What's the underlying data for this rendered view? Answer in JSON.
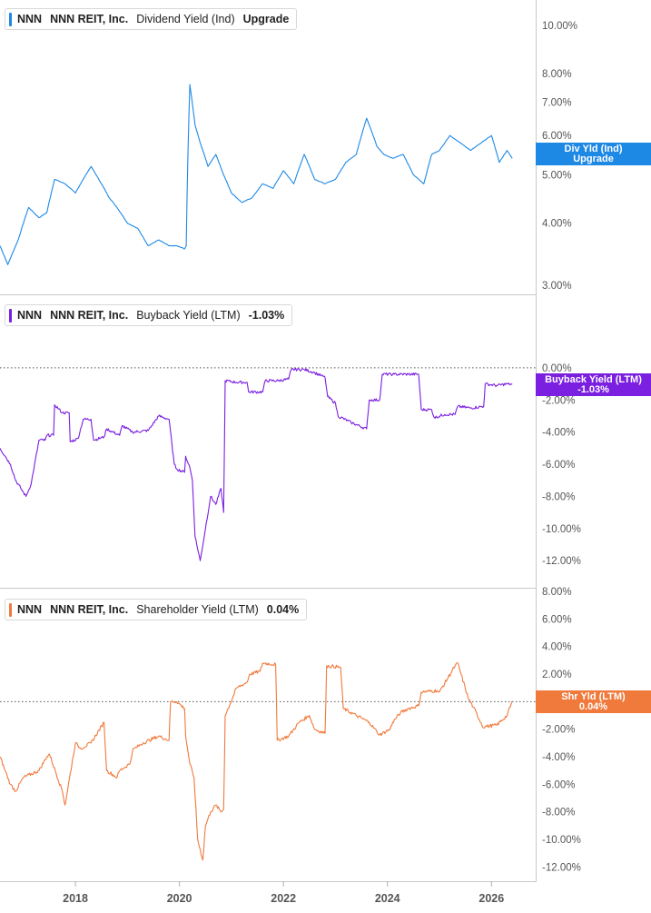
{
  "chart_data": [
    {
      "type": "line",
      "ticker": "NNN",
      "company": "NNN REIT, Inc.",
      "metric": "Dividend Yield (Ind)",
      "legend_value": "Upgrade",
      "color": "#1e88e5",
      "y_scale": "log",
      "ylim": [
        2.9,
        10.6
      ],
      "y_ticks": [
        "10.00%",
        "8.00%",
        "7.00%",
        "6.00%",
        "5.00%",
        "4.00%",
        "3.00%"
      ],
      "y_tick_values": [
        10,
        8,
        7,
        6,
        5,
        4,
        3
      ],
      "zero_line": false,
      "end_tag": [
        "Div Yld (Ind)",
        "Upgrade"
      ],
      "series": {
        "x": [
          2016.55,
          2016.7,
          2016.9,
          2017.1,
          2017.3,
          2017.45,
          2017.6,
          2017.8,
          2018.0,
          2018.15,
          2018.3,
          2018.5,
          2018.65,
          2018.8,
          2019.0,
          2019.2,
          2019.4,
          2019.6,
          2019.8,
          2019.95,
          2020.1,
          2020.13,
          2020.2,
          2020.3,
          2020.4,
          2020.55,
          2020.7,
          2020.85,
          2021.0,
          2021.2,
          2021.4,
          2021.6,
          2021.8,
          2022.0,
          2022.2,
          2022.4,
          2022.6,
          2022.8,
          2023.0,
          2023.2,
          2023.4,
          2023.6,
          2023.8,
          2023.93,
          2024.1,
          2024.3,
          2024.5,
          2024.7,
          2024.85,
          2025.0,
          2025.2,
          2025.4,
          2025.6,
          2025.8,
          2026.0,
          2026.15,
          2026.3,
          2026.4
        ],
        "y": [
          3.6,
          3.3,
          3.7,
          4.3,
          4.1,
          4.2,
          4.9,
          4.8,
          4.6,
          4.9,
          5.2,
          4.8,
          4.5,
          4.3,
          4.0,
          3.9,
          3.6,
          3.7,
          3.6,
          3.6,
          3.55,
          3.6,
          7.6,
          6.3,
          5.8,
          5.2,
          5.5,
          5.0,
          4.6,
          4.4,
          4.5,
          4.8,
          4.7,
          5.1,
          4.8,
          5.5,
          4.9,
          4.8,
          4.9,
          5.3,
          5.5,
          6.5,
          5.7,
          5.5,
          5.4,
          5.5,
          5.0,
          4.8,
          5.5,
          5.6,
          6.0,
          5.8,
          5.6,
          5.8,
          6.0,
          5.3,
          5.6,
          5.4
        ]
      }
    },
    {
      "type": "line",
      "ticker": "NNN",
      "company": "NNN REIT, Inc.",
      "metric": "Buyback Yield (LTM)",
      "legend_value": "-1.03%",
      "color": "#7b1fe0",
      "ylim": [
        -12.5,
        2.2
      ],
      "y_ticks": [
        "0.00%",
        "-2.00%",
        "-4.00%",
        "-6.00%",
        "-8.00%",
        "-10.00%",
        "-12.00%"
      ],
      "y_tick_values": [
        0,
        -2,
        -4,
        -6,
        -8,
        -10,
        -12
      ],
      "zero_line": true,
      "end_tag": [
        "Buyback Yield (LTM)",
        "-1.03%"
      ],
      "series": {
        "x": [
          2016.55,
          2016.65,
          2016.75,
          2016.85,
          2016.95,
          2017.05,
          2017.15,
          2017.3,
          2017.42,
          2017.45,
          2017.58,
          2017.6,
          2017.75,
          2017.88,
          2017.9,
          2018.05,
          2018.15,
          2018.3,
          2018.35,
          2018.55,
          2018.6,
          2018.85,
          2018.9,
          2019.1,
          2019.4,
          2019.6,
          2019.8,
          2019.9,
          2019.95,
          2020.1,
          2020.12,
          2020.2,
          2020.25,
          2020.3,
          2020.4,
          2020.5,
          2020.6,
          2020.7,
          2020.8,
          2020.85,
          2020.88,
          2021.1,
          2021.3,
          2021.33,
          2021.6,
          2021.65,
          2021.9,
          2022.1,
          2022.15,
          2022.4,
          2022.6,
          2022.8,
          2022.85,
          2023.0,
          2023.05,
          2023.3,
          2023.6,
          2023.65,
          2023.85,
          2023.9,
          2024.1,
          2024.13,
          2024.4,
          2024.6,
          2024.65,
          2024.85,
          2024.9,
          2025.1,
          2025.3,
          2025.35,
          2025.6,
          2025.85,
          2025.88,
          2026.1,
          2026.3,
          2026.4
        ],
        "y": [
          -5.0,
          -5.5,
          -6.0,
          -7.0,
          -7.5,
          -8.0,
          -7.2,
          -4.5,
          -4.5,
          -4.2,
          -4.2,
          -2.3,
          -2.8,
          -2.8,
          -4.6,
          -4.4,
          -3.2,
          -3.2,
          -4.5,
          -4.3,
          -3.8,
          -4.2,
          -3.6,
          -4.0,
          -3.9,
          -3.0,
          -3.2,
          -6.0,
          -6.3,
          -6.5,
          -5.5,
          -6.2,
          -7.0,
          -10.5,
          -12.0,
          -10.0,
          -8.0,
          -8.5,
          -7.5,
          -9.0,
          -0.8,
          -0.9,
          -0.9,
          -1.5,
          -1.5,
          -0.8,
          -0.8,
          -0.7,
          -0.1,
          -0.1,
          -0.3,
          -0.6,
          -1.8,
          -2.2,
          -3.0,
          -3.4,
          -3.8,
          -2.0,
          -2.0,
          -0.4,
          -0.4,
          -0.4,
          -0.4,
          -0.4,
          -2.6,
          -2.6,
          -3.1,
          -2.9,
          -2.9,
          -2.4,
          -2.5,
          -2.4,
          -1.0,
          -1.1,
          -1.0,
          -1.03
        ]
      }
    },
    {
      "type": "line",
      "ticker": "NNN",
      "company": "NNN REIT, Inc.",
      "metric": "Shareholder Yield (LTM)",
      "legend_value": "0.04%",
      "color": "#f07a3c",
      "ylim": [
        -12.5,
        8.2
      ],
      "y_ticks": [
        "8.00%",
        "6.00%",
        "4.00%",
        "2.00%",
        "0.00%",
        "-2.00%",
        "-4.00%",
        "-6.00%",
        "-8.00%",
        "-10.00%",
        "-12.00%"
      ],
      "y_tick_values": [
        8,
        6,
        4,
        2,
        0,
        -2,
        -4,
        -6,
        -8,
        -10,
        -12
      ],
      "zero_line": true,
      "end_tag": [
        "Shr Yld (LTM)",
        "0.04%"
      ],
      "series": {
        "x": [
          2016.55,
          2016.65,
          2016.75,
          2016.85,
          2017.0,
          2017.3,
          2017.45,
          2017.5,
          2017.75,
          2017.8,
          2018.0,
          2018.05,
          2018.1,
          2018.3,
          2018.55,
          2018.6,
          2018.8,
          2018.85,
          2019.05,
          2019.1,
          2019.3,
          2019.6,
          2019.8,
          2019.83,
          2019.95,
          2020.1,
          2020.12,
          2020.2,
          2020.28,
          2020.35,
          2020.45,
          2020.5,
          2020.6,
          2020.7,
          2020.8,
          2020.85,
          2020.88,
          2021.1,
          2021.3,
          2021.35,
          2021.55,
          2021.6,
          2021.85,
          2021.88,
          2022.1,
          2022.3,
          2022.5,
          2022.6,
          2022.8,
          2022.83,
          2023.1,
          2023.15,
          2023.4,
          2023.65,
          2023.8,
          2023.85,
          2024.05,
          2024.1,
          2024.25,
          2024.4,
          2024.6,
          2024.65,
          2024.95,
          2025.0,
          2025.3,
          2025.35,
          2025.55,
          2025.65,
          2025.85,
          2025.88,
          2026.1,
          2026.3,
          2026.4
        ],
        "y": [
          -4.0,
          -5.0,
          -6.0,
          -6.5,
          -5.5,
          -5.0,
          -4.0,
          -3.8,
          -6.5,
          -7.5,
          -3.0,
          -3.2,
          -3.4,
          -3.0,
          -1.5,
          -5.0,
          -5.5,
          -5.0,
          -4.5,
          -3.5,
          -3.0,
          -2.5,
          -2.8,
          0.0,
          0.0,
          -0.5,
          -2.5,
          -4.5,
          -5.5,
          -10.0,
          -11.5,
          -9.0,
          -8.0,
          -7.5,
          -8.0,
          -7.8,
          -1.0,
          1.0,
          1.4,
          2.0,
          2.2,
          2.8,
          2.7,
          -2.8,
          -2.5,
          -1.5,
          -1.0,
          -2.0,
          -2.3,
          2.6,
          2.5,
          -0.5,
          -1.0,
          -1.5,
          -2.2,
          -2.4,
          -2.0,
          -1.5,
          -0.8,
          -0.5,
          -0.3,
          0.7,
          0.8,
          0.7,
          2.6,
          2.8,
          0.3,
          -0.4,
          -1.9,
          -1.8,
          -1.7,
          -1.0,
          0.04
        ]
      }
    }
  ],
  "x_axis": {
    "ticks": [
      "2018",
      "2020",
      "2022",
      "2024",
      "2026"
    ],
    "tick_values": [
      2018,
      2020,
      2022,
      2024,
      2026
    ],
    "xlim": [
      2016.55,
      2026.85
    ]
  }
}
